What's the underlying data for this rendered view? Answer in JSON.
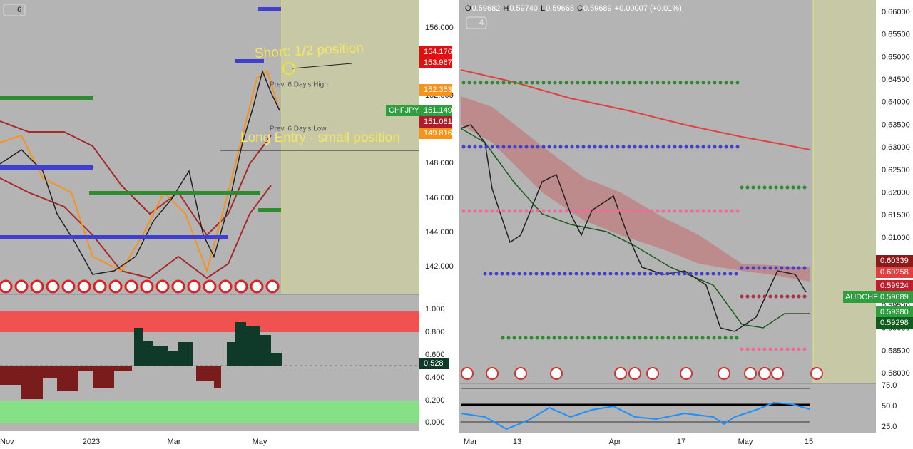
{
  "left_pane": {
    "interval_badge": "6",
    "price_axis": [
      "156.000",
      "152.000",
      "148.000",
      "146.000",
      "144.000",
      "142.000"
    ],
    "price_tags": [
      "154.176",
      "153.967",
      "152.353",
      "151.149",
      "151.081",
      "149.816"
    ],
    "symbol": "CHFJPY",
    "annotations": {
      "short": "Short: 1/2 position",
      "long": "Long Entry - small position",
      "prev_high": "Prev. 6 Day's High",
      "prev_low": "Prev. 6 Day's Low"
    },
    "oscillator_axis": [
      "1.000",
      "0.800",
      "0.600",
      "0.400",
      "0.200",
      "0.000"
    ],
    "oscillator_tag": "0.528",
    "date_axis": [
      "Nov",
      "2023",
      "Mar",
      "May"
    ]
  },
  "right_pane": {
    "interval_badge": "4",
    "ohlc": {
      "o_label": "O",
      "o": "0.59682",
      "h_label": "H",
      "h": "0.59740",
      "l_label": "L",
      "l": "0.59668",
      "c_label": "C",
      "c": "0.59689",
      "change": "+0.00007 (+0.01%)"
    },
    "price_axis": [
      "0.66000",
      "0.65500",
      "0.65000",
      "0.64500",
      "0.64000",
      "0.63500",
      "0.63000",
      "0.62500",
      "0.62000",
      "0.61500",
      "0.61000",
      "0.60500",
      "0.60000",
      "0.59500",
      "0.59000",
      "0.58500",
      "0.58000"
    ],
    "price_tags": [
      "0.60339",
      "0.60258",
      "0.59924",
      "0.59689",
      "0.59380",
      "0.59298"
    ],
    "symbol": "AUDCHF",
    "oscillator_axis": [
      "75.0",
      "50.0",
      "25.0"
    ],
    "date_axis": [
      "Mar",
      "13",
      "Apr",
      "17",
      "May",
      "15"
    ]
  }
}
